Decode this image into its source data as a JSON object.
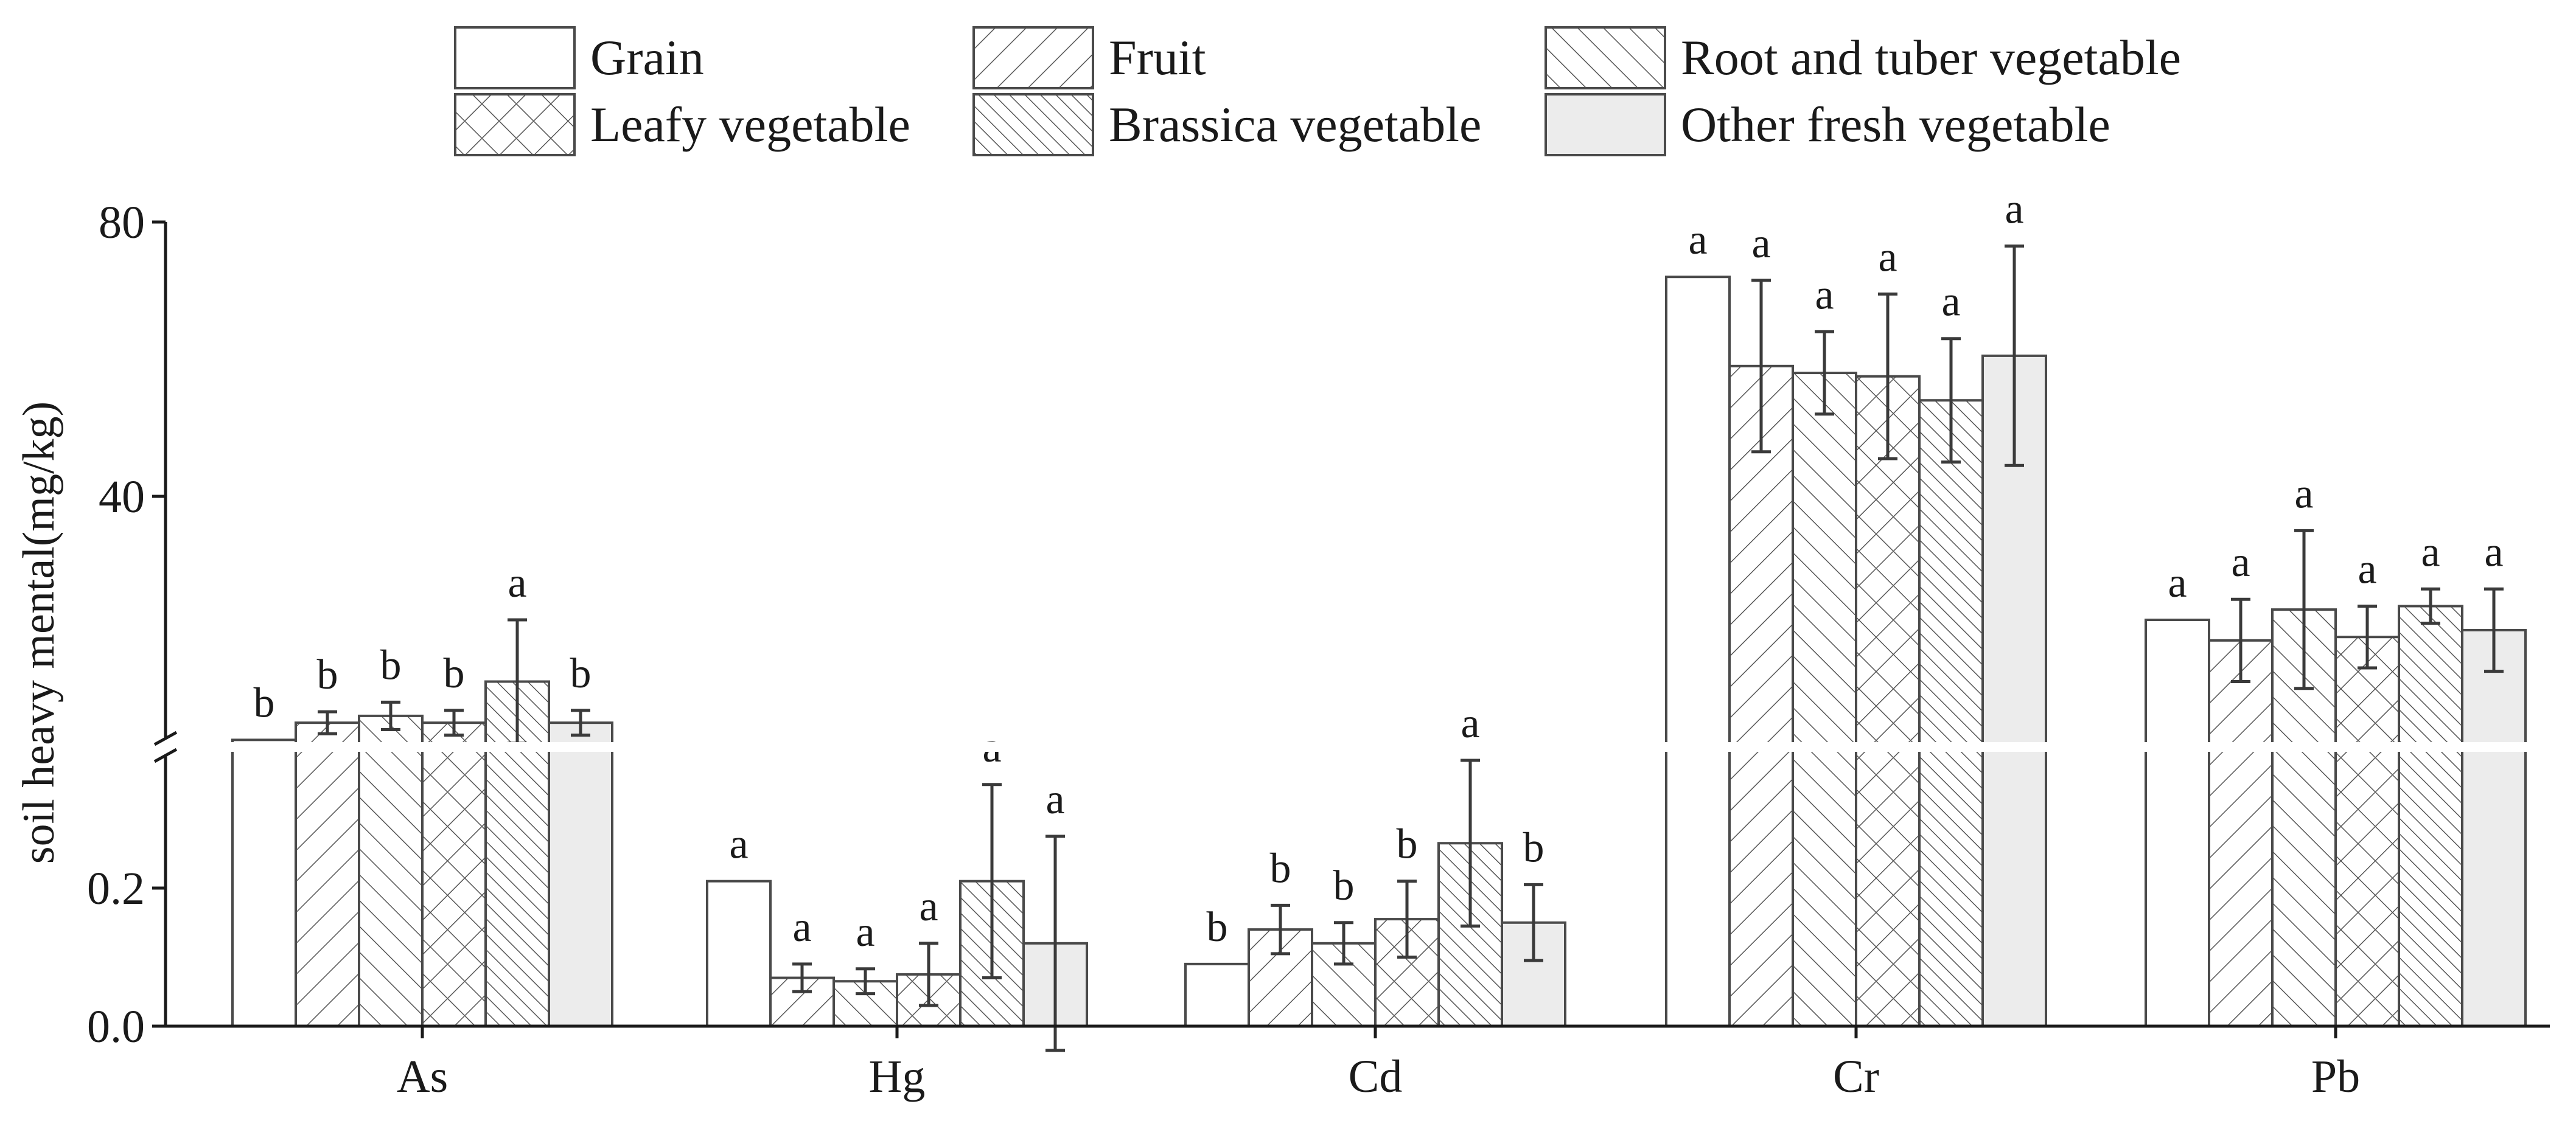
{
  "chart_data": {
    "type": "bar",
    "title": "",
    "xlabel": "",
    "ylabel": "soil heavy mental(mg/kg)",
    "categories": [
      "As",
      "Hg",
      "Cd",
      "Cr",
      "Pb"
    ],
    "axis_segments": {
      "lower": {
        "range": [
          0,
          0.4
        ],
        "ticks": [
          0.0,
          0.2
        ],
        "tick_labels": [
          "0.0",
          "0.2"
        ],
        "applies_to": [
          "Hg",
          "Cd"
        ]
      },
      "upper": {
        "range": [
          4,
          80
        ],
        "ticks": [
          40,
          80
        ],
        "tick_labels": [
          "40",
          "80"
        ],
        "applies_to": [
          "As",
          "Cr",
          "Pb"
        ]
      },
      "break": true
    },
    "legend_position": "top-center",
    "series": [
      {
        "name": "Grain",
        "pattern": "none",
        "fill": "#ffffff",
        "values": [
          4.5,
          0.21,
          0.09,
          72,
          22
        ],
        "errors": [
          null,
          null,
          null,
          null,
          null
        ],
        "labels": [
          "b",
          "a",
          "b",
          "a",
          "a"
        ]
      },
      {
        "name": "Fruit",
        "pattern": "diagonal-up",
        "fill": "#ffffff",
        "values": [
          7,
          0.07,
          0.14,
          59,
          19
        ],
        "errors": [
          1.6,
          0.02,
          0.035,
          12.5,
          6
        ],
        "labels": [
          "b",
          "a",
          "b",
          "a",
          "a"
        ]
      },
      {
        "name": "Root and tuber vegetable",
        "pattern": "diagonal-down",
        "fill": "#ffffff",
        "values": [
          8,
          0.065,
          0.12,
          58,
          23.5
        ],
        "errors": [
          2,
          0.018,
          0.03,
          6,
          11.5
        ],
        "labels": [
          "b",
          "a",
          "b",
          "a",
          "a"
        ]
      },
      {
        "name": "Leafy vegetable",
        "pattern": "crosshatch",
        "fill": "#ffffff",
        "values": [
          7,
          0.075,
          0.155,
          57.5,
          19.5
        ],
        "errors": [
          1.8,
          0.045,
          0.055,
          12,
          4.5
        ],
        "labels": [
          "b",
          "a",
          "b",
          "a",
          "a"
        ]
      },
      {
        "name": "Brassica vegetable",
        "pattern": "dense-diagonal-down",
        "fill": "#ffffff",
        "values": [
          13,
          0.21,
          0.265,
          54,
          24
        ],
        "errors": [
          9,
          0.14,
          0.12,
          9,
          2.5
        ],
        "labels": [
          "a",
          "a",
          "a",
          "a",
          "a"
        ]
      },
      {
        "name": "Other fresh vegetable",
        "pattern": "none",
        "fill": "#ececec",
        "values": [
          7,
          0.12,
          0.15,
          60.5,
          20.5
        ],
        "errors": [
          1.8,
          0.155,
          0.055,
          16,
          6
        ],
        "labels": [
          "b",
          "a",
          "b",
          "a",
          "a"
        ]
      }
    ]
  }
}
